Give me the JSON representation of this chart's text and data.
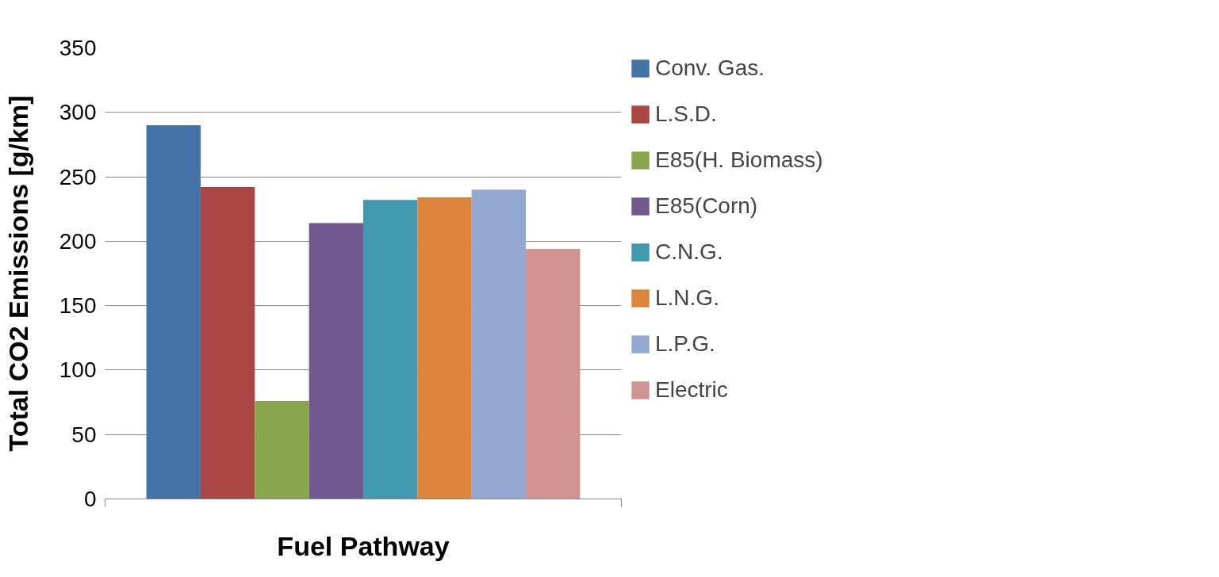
{
  "chart_data": {
    "type": "bar",
    "xlabel": "Fuel Pathway",
    "ylabel": "Total CO2 Emissions [g/km]",
    "categories": [
      null
    ],
    "series": [
      {
        "name": "Conv. Gas.",
        "color": "#4572a7",
        "values": [
          290
        ]
      },
      {
        "name": "L.S.D.",
        "color": "#aa4643",
        "values": [
          242
        ]
      },
      {
        "name": "E85(H. Biomass)",
        "color": "#89a54e",
        "values": [
          76
        ]
      },
      {
        "name": "E85(Corn)",
        "color": "#71588f",
        "values": [
          214
        ]
      },
      {
        "name": "C.N.G.",
        "color": "#4198af",
        "values": [
          232
        ]
      },
      {
        "name": "L.N.G.",
        "color": "#db843d",
        "values": [
          234
        ]
      },
      {
        "name": "L.P.G.",
        "color": "#93a9cf",
        "values": [
          240
        ]
      },
      {
        "name": "Electric",
        "color": "#d19392",
        "values": [
          194
        ]
      }
    ],
    "ylim": [
      0,
      350
    ],
    "yticks": [
      0,
      50,
      100,
      150,
      200,
      250,
      300,
      350
    ],
    "grid": "y",
    "legend": "right"
  }
}
